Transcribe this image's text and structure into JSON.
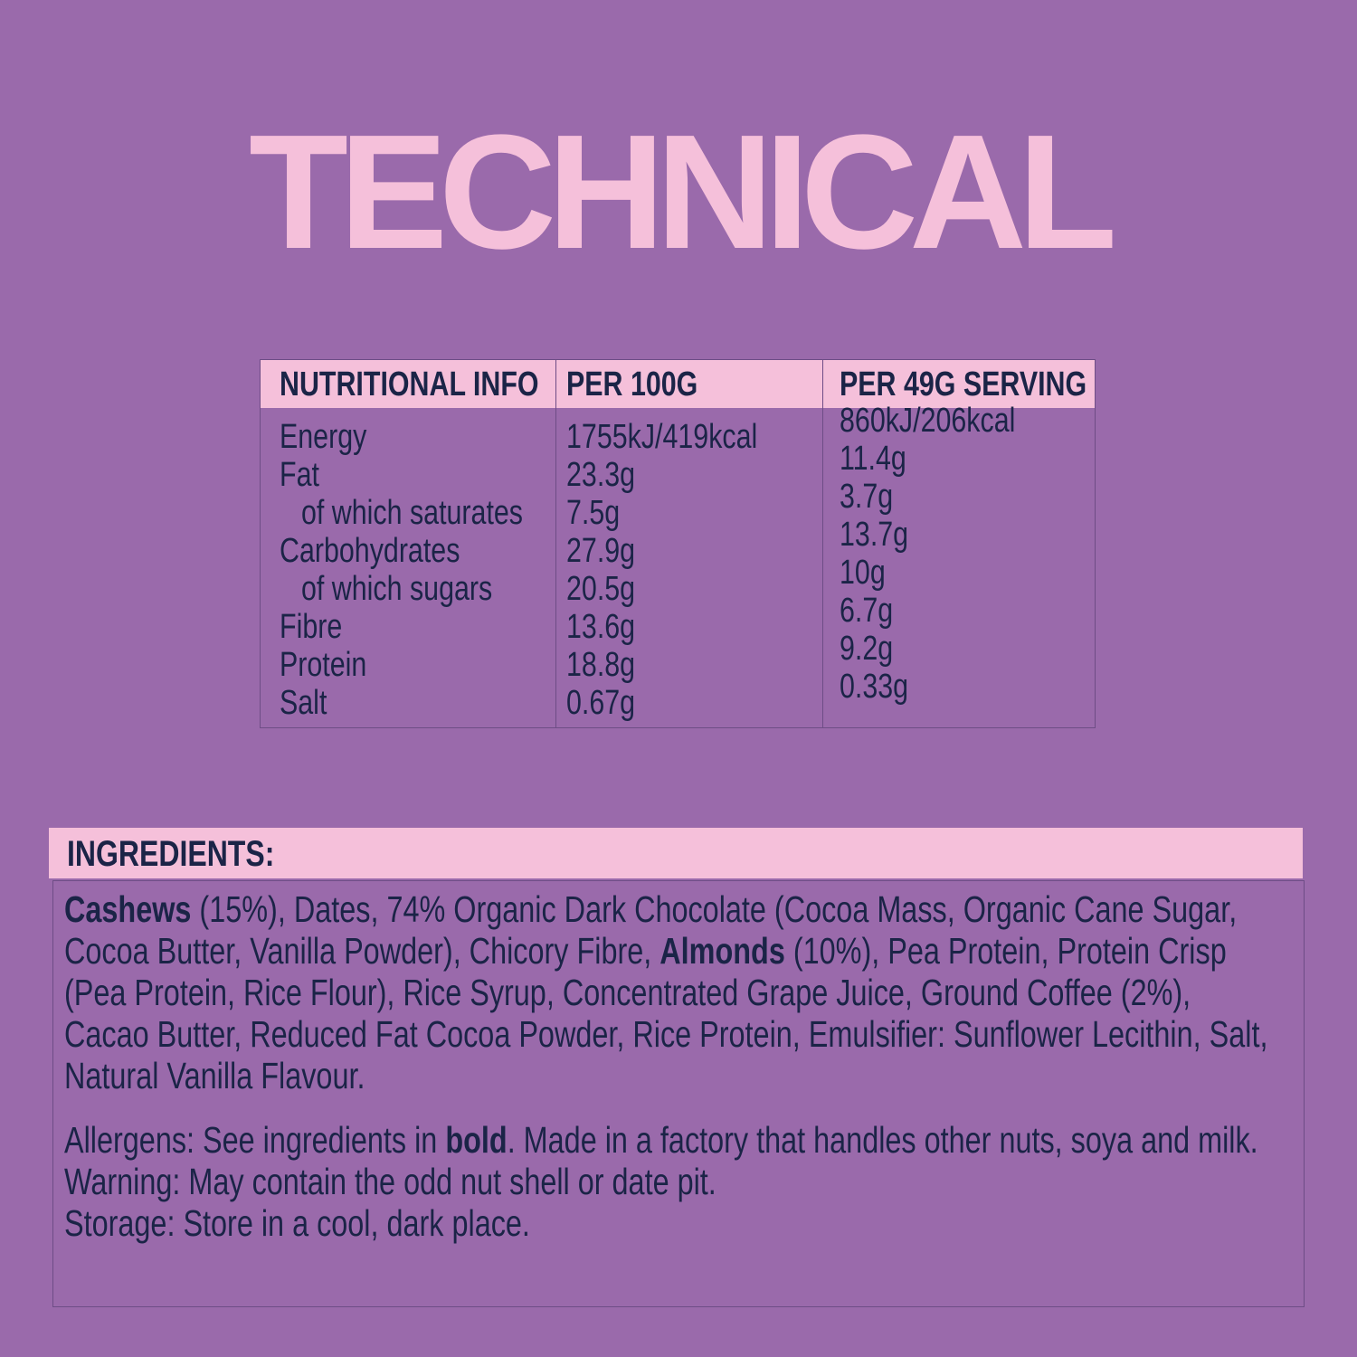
{
  "title": "TECHNICAL",
  "nutrition": {
    "headers": [
      "NUTRITIONAL INFO",
      "PER 100G",
      "PER 49G SERVING"
    ],
    "rows": [
      {
        "label": "Energy",
        "per100": "1755kJ/419kcal",
        "serving": "860kJ/206kcal",
        "indent": false
      },
      {
        "label": "Fat",
        "per100": "23.3g",
        "serving": "11.4g",
        "indent": false
      },
      {
        "label": "of which saturates",
        "per100": "7.5g",
        "serving": "3.7g",
        "indent": true
      },
      {
        "label": "Carbohydrates",
        "per100": "27.9g",
        "serving": "13.7g",
        "indent": false
      },
      {
        "label": "of which sugars",
        "per100": "20.5g",
        "serving": "10g",
        "indent": true
      },
      {
        "label": "Fibre",
        "per100": "13.6g",
        "serving": "6.7g",
        "indent": false
      },
      {
        "label": "Protein",
        "per100": "18.8g",
        "serving": "9.2g",
        "indent": false
      },
      {
        "label": "Salt",
        "per100": "0.67g",
        "serving": "0.33g",
        "indent": false
      }
    ]
  },
  "ingredients": {
    "heading": "INGREDIENTS:",
    "text": [
      {
        "t": "Cashews",
        "bold": true
      },
      {
        "t": " (15%), Dates, 74% Organic Dark Chocolate (Cocoa Mass, Organic Cane Sugar, Cocoa Butter, Vanilla Powder), Chicory Fibre, ",
        "bold": false
      },
      {
        "t": "Almonds",
        "bold": true
      },
      {
        "t": " (10%), Pea Protein, Protein Crisp (Pea Protein, Rice Flour), Rice Syrup, Concentrated Grape Juice, Ground Coffee (2%), Cacao Butter, Reduced Fat Cocoa Powder, Rice Protein, Emulsifier: Sunflower Lecithin, Salt, Natural Vanilla Flavour.",
        "bold": false
      }
    ],
    "allergens": [
      {
        "t": "Allergens: See ingredients in ",
        "bold": false
      },
      {
        "t": "bold",
        "bold": true
      },
      {
        "t": ". Made in a factory that handles other nuts, soya and milk. Warning: May contain the odd nut shell or date pit.",
        "bold": false
      }
    ],
    "storage": "Storage: Store in a cool, dark place."
  },
  "colors": {
    "background": "#9a6aab",
    "accent_pink": "#f5c0da",
    "text_navy": "#1b2447"
  }
}
